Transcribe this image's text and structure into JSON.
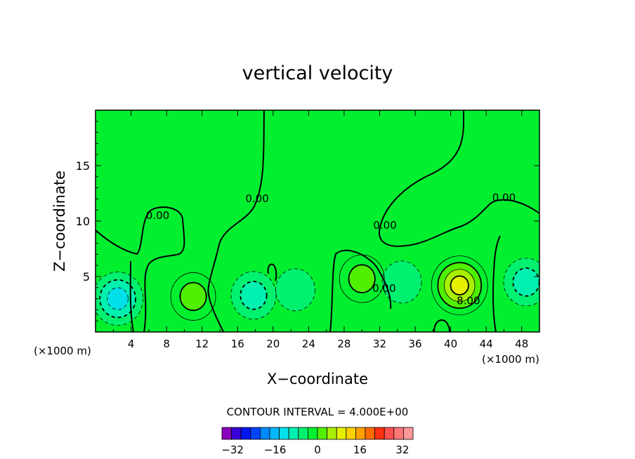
{
  "chart_data": {
    "type": "contour",
    "title": "vertical velocity",
    "xlabel": "X−coordinate",
    "ylabel": "Z−coordinate",
    "x_unit_label": "(×1000 m)",
    "xlim": [
      0,
      50
    ],
    "ylim": [
      0,
      20
    ],
    "x_ticks": [
      4,
      8,
      12,
      16,
      20,
      24,
      28,
      32,
      36,
      40,
      44,
      48
    ],
    "y_ticks": [
      5,
      10,
      15
    ],
    "contour_interval_text": "CONTOUR INTERVAL = 4.000E+00",
    "contour_labels": [
      {
        "text": "0.00",
        "x": 7.0,
        "y": 10.2
      },
      {
        "text": "0.00",
        "x": 18.2,
        "y": 11.7
      },
      {
        "text": "0.00",
        "x": 32.6,
        "y": 9.3
      },
      {
        "text": "0.00",
        "x": 46.0,
        "y": 11.8
      },
      {
        "text": "0.00",
        "x": 32.5,
        "y": 3.6
      },
      {
        "text": "8.00",
        "x": 42.0,
        "y": 2.5
      }
    ],
    "features": [
      {
        "kind": "max",
        "x": 41.0,
        "y": 4.2,
        "value": 16
      },
      {
        "kind": "max",
        "x": 11.0,
        "y": 3.2,
        "value": 8
      },
      {
        "kind": "max",
        "x": 30.0,
        "y": 4.8,
        "value": 8
      },
      {
        "kind": "min",
        "x": 2.5,
        "y": 3.0,
        "value": -12
      },
      {
        "kind": "min",
        "x": 17.8,
        "y": 3.3,
        "value": -8
      },
      {
        "kind": "min",
        "x": 22.5,
        "y": 3.8,
        "value": -4
      },
      {
        "kind": "min",
        "x": 34.5,
        "y": 4.5,
        "value": -4
      },
      {
        "kind": "min",
        "x": 48.5,
        "y": 4.5,
        "value": -8
      }
    ],
    "colorbar": {
      "min": -36,
      "max": 36,
      "step": 4,
      "tick_values": [
        -32,
        -16,
        0,
        16,
        32
      ],
      "tick_labels": [
        "−32",
        "−16",
        "0",
        "16",
        "32"
      ],
      "colors": [
        "#8800bb",
        "#3a00d8",
        "#0018ee",
        "#0044ff",
        "#0088ff",
        "#00b8ff",
        "#00e0e8",
        "#00f0b0",
        "#00f070",
        "#00f030",
        "#50f000",
        "#a8f000",
        "#e4f000",
        "#ffd000",
        "#ffa000",
        "#ff6a00",
        "#ff3010",
        "#ff5050",
        "#ff7878",
        "#ff9898"
      ]
    }
  }
}
